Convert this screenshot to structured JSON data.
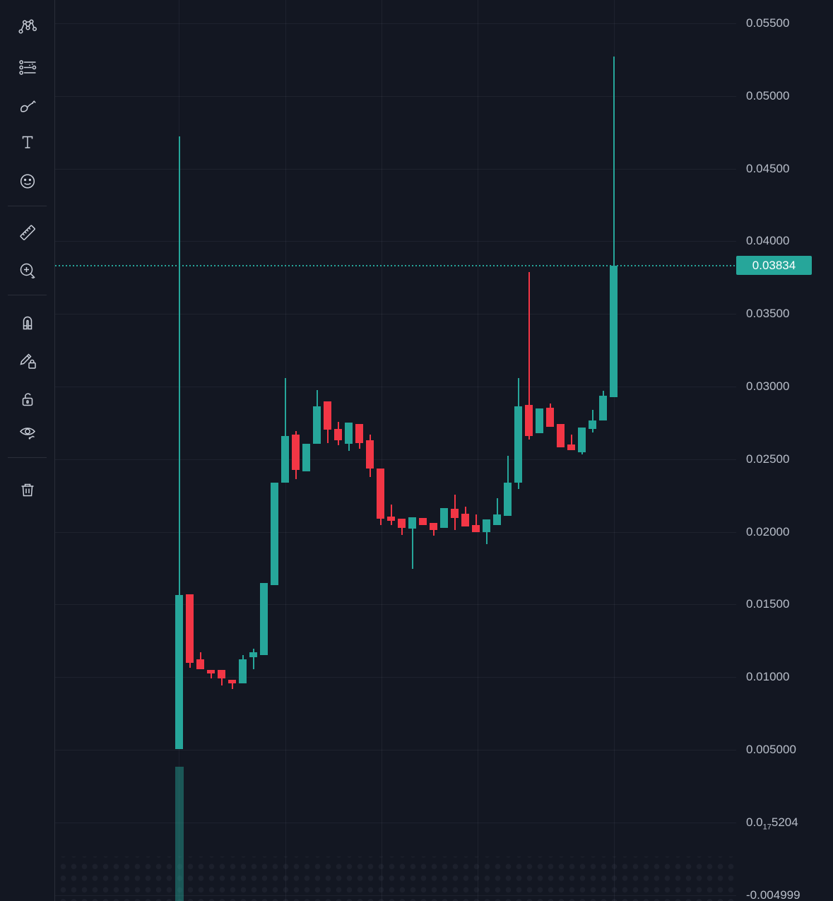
{
  "colors": {
    "background": "#131722",
    "up": "#26a69a",
    "down": "#f23645",
    "grid": "rgba(240,243,250,0.055)",
    "axis_text": "#b8bec9",
    "badge_bg": "#26a69a",
    "badge_text": "#ffffff",
    "toolbar_icon": "#cbd0da",
    "divider": "#2a2e39",
    "faded_up": "rgba(38,166,154,0.45)"
  },
  "toolbar": {
    "tools": [
      "clipped-tool-above",
      "xabcd-pattern-tool",
      "fib-retracement-tool",
      "brush-tool",
      "text-tool",
      "emoji-tool",
      "measure-ruler-tool",
      "zoom-in-tool",
      "magnet-mode-tool",
      "drawing-lock-tool",
      "lock-all-drawings-tool",
      "hide-all-drawings-tool",
      "remove-all-drawings-tool"
    ]
  },
  "price_axis": {
    "side": "right",
    "ticks": [
      {
        "value": 0.055,
        "label": "0.05500"
      },
      {
        "value": 0.05,
        "label": "0.05000"
      },
      {
        "value": 0.045,
        "label": "0.04500"
      },
      {
        "value": 0.04,
        "label": "0.04000"
      },
      {
        "value": 0.035,
        "label": "0.03500"
      },
      {
        "value": 0.03,
        "label": "0.03000"
      },
      {
        "value": 0.025,
        "label": "0.02500"
      },
      {
        "value": 0.02,
        "label": "0.02000"
      },
      {
        "value": 0.015,
        "label": "0.01500"
      },
      {
        "value": 0.01,
        "label": "0.01000"
      },
      {
        "value": 0.005,
        "label": "0.005000"
      },
      {
        "value": 0.0,
        "label_parts": {
          "pre": "0.0",
          "sub": "17",
          "post": "5204"
        }
      },
      {
        "value": -0.004999,
        "label": "-0.004999"
      }
    ],
    "current": {
      "value": 0.03834,
      "label": "0.03834"
    }
  },
  "chart_data": {
    "type": "candlestick",
    "title": "",
    "xlabel": "",
    "ylabel": "",
    "y_range": [
      -0.0054,
      0.0555
    ],
    "grid": true,
    "legend": "none",
    "current_price": 0.03834,
    "current_price_line": "dotted",
    "faded_first_bar": {
      "price_top": 0.00384,
      "clipped_below_view": true
    },
    "candles": [
      {
        "o": 0.00506,
        "h": 0.04723,
        "l": 0.00506,
        "c": 0.01566
      },
      {
        "o": 0.01571,
        "h": 0.01571,
        "l": 0.01065,
        "c": 0.01099
      },
      {
        "o": 0.01124,
        "h": 0.01172,
        "l": 0.01056,
        "c": 0.01056
      },
      {
        "o": 0.01051,
        "h": 0.01051,
        "l": 0.00992,
        "c": 0.01026
      },
      {
        "o": 0.01051,
        "h": 0.01051,
        "l": 0.00944,
        "c": 0.00992
      },
      {
        "o": 0.00983,
        "h": 0.00983,
        "l": 0.00919,
        "c": 0.00958
      },
      {
        "o": 0.00958,
        "h": 0.01153,
        "l": 0.00958,
        "c": 0.01124
      },
      {
        "o": 0.01138,
        "h": 0.01197,
        "l": 0.01056,
        "c": 0.01172
      },
      {
        "o": 0.01153,
        "h": 0.01649,
        "l": 0.01153,
        "c": 0.01649
      },
      {
        "o": 0.01634,
        "h": 0.0234,
        "l": 0.01634,
        "c": 0.0234
      },
      {
        "o": 0.0234,
        "h": 0.03059,
        "l": 0.0234,
        "c": 0.02661
      },
      {
        "o": 0.0267,
        "h": 0.02695,
        "l": 0.02364,
        "c": 0.02427
      },
      {
        "o": 0.02417,
        "h": 0.02607,
        "l": 0.02417,
        "c": 0.02607
      },
      {
        "o": 0.02607,
        "h": 0.02977,
        "l": 0.02607,
        "c": 0.02865
      },
      {
        "o": 0.02899,
        "h": 0.02899,
        "l": 0.02612,
        "c": 0.02704
      },
      {
        "o": 0.02709,
        "h": 0.02758,
        "l": 0.02597,
        "c": 0.02631
      },
      {
        "o": 0.02607,
        "h": 0.02753,
        "l": 0.02558,
        "c": 0.02753
      },
      {
        "o": 0.02743,
        "h": 0.02743,
        "l": 0.02573,
        "c": 0.02612
      },
      {
        "o": 0.02631,
        "h": 0.0267,
        "l": 0.02378,
        "c": 0.02437
      },
      {
        "o": 0.02437,
        "h": 0.02437,
        "l": 0.02048,
        "c": 0.02091
      },
      {
        "o": 0.02106,
        "h": 0.02189,
        "l": 0.02048,
        "c": 0.02077
      },
      {
        "o": 0.02091,
        "h": 0.02091,
        "l": 0.0198,
        "c": 0.02028
      },
      {
        "o": 0.02023,
        "h": 0.02101,
        "l": 0.01746,
        "c": 0.02101
      },
      {
        "o": 0.02096,
        "h": 0.02096,
        "l": 0.02048,
        "c": 0.02048
      },
      {
        "o": 0.02062,
        "h": 0.02062,
        "l": 0.01975,
        "c": 0.02014
      },
      {
        "o": 0.02028,
        "h": 0.02164,
        "l": 0.02028,
        "c": 0.02164
      },
      {
        "o": 0.0216,
        "h": 0.02257,
        "l": 0.02014,
        "c": 0.02096
      },
      {
        "o": 0.02126,
        "h": 0.02174,
        "l": 0.02038,
        "c": 0.02038
      },
      {
        "o": 0.02048,
        "h": 0.02121,
        "l": 0.01999,
        "c": 0.01999
      },
      {
        "o": 0.01999,
        "h": 0.02087,
        "l": 0.01916,
        "c": 0.02087
      },
      {
        "o": 0.02048,
        "h": 0.02233,
        "l": 0.02048,
        "c": 0.02121
      },
      {
        "o": 0.02111,
        "h": 0.02524,
        "l": 0.02111,
        "c": 0.0234
      },
      {
        "o": 0.0234,
        "h": 0.03059,
        "l": 0.02296,
        "c": 0.02865
      },
      {
        "o": 0.02874,
        "h": 0.03789,
        "l": 0.02636,
        "c": 0.02661
      },
      {
        "o": 0.0268,
        "h": 0.0285,
        "l": 0.0268,
        "c": 0.0285
      },
      {
        "o": 0.02856,
        "h": 0.02884,
        "l": 0.02724,
        "c": 0.02724
      },
      {
        "o": 0.02743,
        "h": 0.02743,
        "l": 0.02583,
        "c": 0.02583
      },
      {
        "o": 0.02602,
        "h": 0.0267,
        "l": 0.02563,
        "c": 0.02563
      },
      {
        "o": 0.02549,
        "h": 0.02719,
        "l": 0.02534,
        "c": 0.02719
      },
      {
        "o": 0.02709,
        "h": 0.0284,
        "l": 0.02685,
        "c": 0.02768
      },
      {
        "o": 0.02768,
        "h": 0.02972,
        "l": 0.02768,
        "c": 0.02938
      },
      {
        "o": 0.02928,
        "h": 0.05273,
        "l": 0.02928,
        "c": 0.03834
      }
    ]
  }
}
